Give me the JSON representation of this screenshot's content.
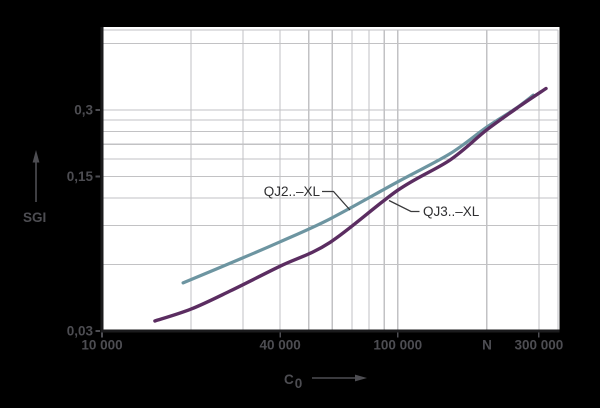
{
  "chart_data": {
    "type": "line",
    "title": "",
    "xlabel_symbol": "C",
    "xlabel_subscript": "0",
    "x_unit": "N",
    "ylabel": "SGI",
    "x_scale": "log",
    "y_scale": "log",
    "xlim": [
      10000,
      348000
    ],
    "ylim": [
      0.03,
      0.69
    ],
    "grid": "on",
    "x_gridlines": [
      20000,
      30000,
      40000,
      50000,
      60000,
      70000,
      80000,
      90000,
      100000,
      200000,
      300000
    ],
    "y_gridlines": [
      0.06,
      0.09,
      0.12,
      0.15,
      0.18,
      0.21,
      0.24,
      0.27,
      0.3,
      0.6
    ],
    "x_ticks": [
      {
        "value": 10000,
        "label": "10 000"
      },
      {
        "value": 40000,
        "label": "40 000"
      },
      {
        "value": 100000,
        "label": "100 000"
      },
      {
        "value": 300000,
        "label": "300 000"
      }
    ],
    "y_ticks": [
      {
        "value": 0.3,
        "label": "0,3"
      },
      {
        "value": 0.15,
        "label": "0,15"
      },
      {
        "value": 0.03,
        "label": "0,03"
      }
    ],
    "series": [
      {
        "name": "QJ2..–XL",
        "color": "#6d95a1",
        "points": [
          [
            18800,
            0.0495
          ],
          [
            29300,
            0.0635
          ],
          [
            40000,
            0.076
          ],
          [
            59000,
            0.0964
          ],
          [
            100000,
            0.142
          ],
          [
            150000,
            0.19
          ],
          [
            200000,
            0.251
          ],
          [
            249000,
            0.303
          ],
          [
            287000,
            0.35
          ]
        ]
      },
      {
        "name": "QJ3..–XL",
        "color": "#5b2d61",
        "points": [
          [
            15100,
            0.0333
          ],
          [
            20000,
            0.0377
          ],
          [
            27100,
            0.0455
          ],
          [
            40000,
            0.0589
          ],
          [
            59000,
            0.0755
          ],
          [
            100000,
            0.13
          ],
          [
            150000,
            0.178
          ],
          [
            200000,
            0.244
          ],
          [
            259000,
            0.313
          ],
          [
            317000,
            0.375
          ]
        ]
      }
    ],
    "colors": {
      "background": "#000000",
      "plot_background": "#ffffff",
      "grid": "#c2c2c4",
      "axis": "#1b1b1d",
      "outside_text": "#4d4d52",
      "inside_text": "#2f2f31",
      "leader_line": "#3a3a3c"
    }
  }
}
